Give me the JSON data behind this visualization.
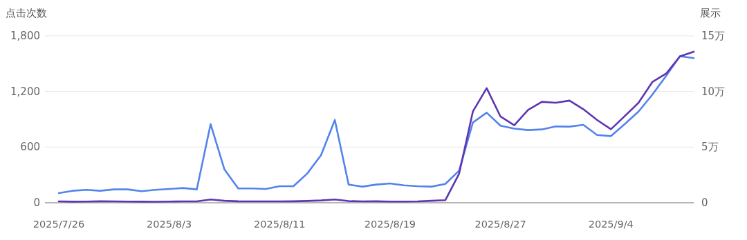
{
  "chart_data": {
    "type": "line",
    "ylabel": "点击次数",
    "y2label": "展示",
    "x": [
      "2025-07-26",
      "2025-07-27",
      "2025-07-28",
      "2025-07-29",
      "2025-07-30",
      "2025-07-31",
      "2025-08-01",
      "2025-08-02",
      "2025-08-03",
      "2025-08-04",
      "2025-08-05",
      "2025-08-06",
      "2025-08-07",
      "2025-08-08",
      "2025-08-09",
      "2025-08-10",
      "2025-08-11",
      "2025-08-12",
      "2025-08-13",
      "2025-08-14",
      "2025-08-15",
      "2025-08-16",
      "2025-08-17",
      "2025-08-18",
      "2025-08-19",
      "2025-08-20",
      "2025-08-21",
      "2025-08-22",
      "2025-08-23",
      "2025-08-24",
      "2025-08-25",
      "2025-08-26",
      "2025-08-27",
      "2025-08-28",
      "2025-08-29",
      "2025-08-30",
      "2025-08-31",
      "2025-09-01",
      "2025-09-02",
      "2025-09-03",
      "2025-09-04",
      "2025-09-05",
      "2025-09-06",
      "2025-09-07",
      "2025-09-08",
      "2025-09-09",
      "2025-09-10"
    ],
    "series": [
      {
        "color": "#5383ec",
        "values": [
          104,
          129,
          139,
          129,
          144,
          144,
          124,
          139,
          149,
          159,
          144,
          848,
          360,
          154,
          154,
          149,
          179,
          179,
          315,
          513,
          893,
          196,
          174,
          196,
          208,
          188,
          179,
          174,
          203,
          345,
          866,
          972,
          831,
          799,
          784,
          791,
          823,
          821,
          841,
          731,
          719,
          848,
          984,
          1166,
          1369,
          1580,
          1560
        ]
      },
      {
        "color": "#5e35b1",
        "axis": "y2",
        "values": [
          0.12,
          0.1,
          0.11,
          0.13,
          0.12,
          0.11,
          0.1,
          0.09,
          0.11,
          0.12,
          0.12,
          0.29,
          0.18,
          0.13,
          0.12,
          0.12,
          0.12,
          0.13,
          0.16,
          0.21,
          0.29,
          0.15,
          0.12,
          0.13,
          0.11,
          0.11,
          0.12,
          0.18,
          0.23,
          2.6,
          8.2,
          10.3,
          7.75,
          6.96,
          8.35,
          9.07,
          8.99,
          9.18,
          8.41,
          7.44,
          6.61,
          7.79,
          8.99,
          10.85,
          11.61,
          13.16,
          13.58
        ]
      }
    ],
    "xlim": [
      "2025-07-25",
      "2025-09-10"
    ],
    "xticks": [
      {
        "value": "2025-07-26",
        "label": "2025/7/26"
      },
      {
        "value": "2025-08-03",
        "label": "2025/8/3"
      },
      {
        "value": "2025-08-11",
        "label": "2025/8/11"
      },
      {
        "value": "2025-08-19",
        "label": "2025/8/19"
      },
      {
        "value": "2025-08-27",
        "label": "2025/8/27"
      },
      {
        "value": "2025-09-04",
        "label": "2025/9/4"
      }
    ],
    "ylim": [
      0,
      1800
    ],
    "yticks": [
      0,
      {
        "value": 600,
        "label": "600"
      },
      {
        "value": 1200,
        "label": "1,200"
      },
      {
        "value": 1800,
        "label": "1,800"
      }
    ],
    "y2lim": [
      0,
      15
    ],
    "y2ticks": [
      0,
      {
        "value": 5,
        "label": "5万"
      },
      {
        "value": 10,
        "label": "10万"
      },
      {
        "value": 15,
        "label": "15万"
      }
    ],
    "grid": "y",
    "line_style": "solid",
    "marker": "none"
  }
}
